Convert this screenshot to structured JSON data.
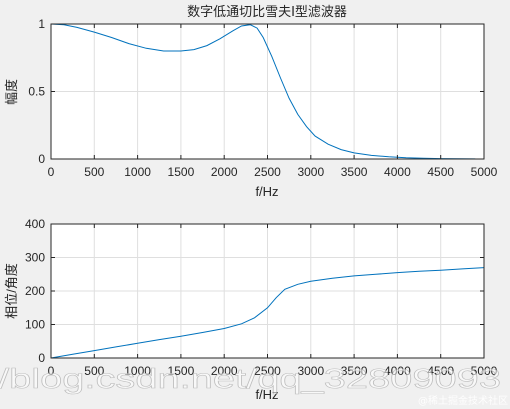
{
  "chart_data": [
    {
      "type": "line",
      "title": "数字低通切比雪夫I型滤波器",
      "xlabel": "f/Hz",
      "ylabel": "幅度",
      "xlim": [
        0,
        5000
      ],
      "ylim": [
        0,
        1
      ],
      "xticks": [
        0,
        500,
        1000,
        1500,
        2000,
        2500,
        3000,
        3500,
        4000,
        4500,
        5000
      ],
      "yticks": [
        0,
        0.5,
        1
      ],
      "ytick_labels": [
        "0",
        "0.5",
        "1"
      ],
      "grid": true,
      "color": "#0072bd",
      "series": [
        {
          "x": [
            0,
            150,
            300,
            500,
            700,
            900,
            1100,
            1300,
            1500,
            1650,
            1800,
            1950,
            2100,
            2200,
            2300,
            2380,
            2450,
            2550,
            2650,
            2750,
            2850,
            2950,
            3050,
            3200,
            3350,
            3500,
            3700,
            3900,
            4100,
            4300,
            4500,
            4700,
            4900
          ],
          "values": [
            1.0,
            0.995,
            0.975,
            0.94,
            0.9,
            0.855,
            0.82,
            0.8,
            0.8,
            0.81,
            0.84,
            0.89,
            0.95,
            0.985,
            0.995,
            0.97,
            0.9,
            0.76,
            0.6,
            0.45,
            0.33,
            0.24,
            0.17,
            0.11,
            0.07,
            0.045,
            0.027,
            0.016,
            0.009,
            0.005,
            0.003,
            0.002,
            0.001
          ]
        }
      ]
    },
    {
      "type": "line",
      "title": "",
      "xlabel": "f/Hz",
      "ylabel": "相位/角度",
      "xlim": [
        0,
        5000
      ],
      "ylim": [
        0,
        400
      ],
      "xticks": [
        0,
        500,
        1000,
        1500,
        2000,
        2500,
        3000,
        3500,
        4000,
        4500,
        5000
      ],
      "yticks": [
        0,
        100,
        200,
        300,
        400
      ],
      "grid": true,
      "color": "#0072bd",
      "series": [
        {
          "x": [
            0,
            250,
            500,
            750,
            1000,
            1250,
            1500,
            1750,
            2000,
            2200,
            2350,
            2500,
            2600,
            2700,
            2850,
            3000,
            3250,
            3500,
            3750,
            4000,
            4250,
            4500,
            4750,
            5000
          ],
          "values": [
            0,
            11,
            22,
            33,
            44,
            55,
            65,
            76,
            88,
            102,
            120,
            150,
            180,
            205,
            220,
            229,
            238,
            245,
            250,
            255,
            259,
            262,
            266,
            270
          ]
        }
      ]
    }
  ],
  "watermark": {
    "url": "/blog.csdn.net/qq_32809093",
    "brand": "@稀土掘金技术社区"
  }
}
